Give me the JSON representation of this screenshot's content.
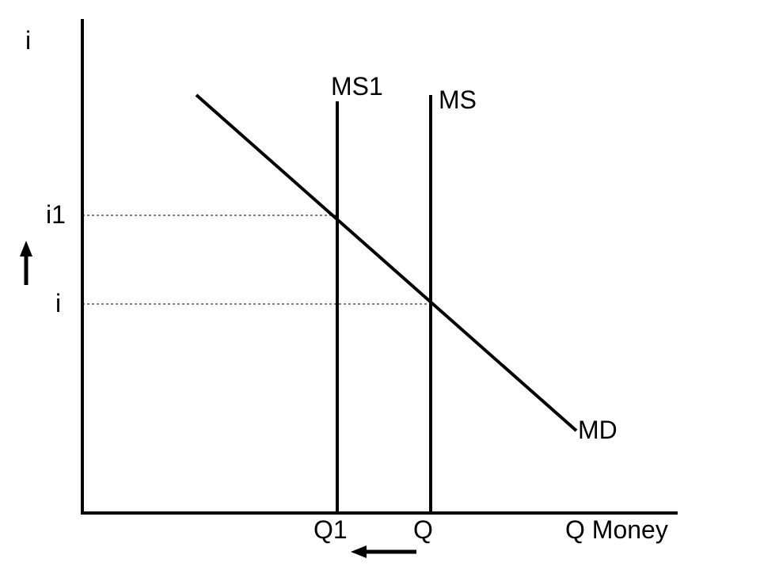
{
  "diagram": {
    "y_axis_label": "i",
    "x_axis_label": "Q Money",
    "curves": {
      "money_demand": "MD",
      "money_supply": "MS",
      "money_supply_new": "MS1"
    },
    "y_ticks": {
      "new_rate": "i1",
      "initial_rate": "i"
    },
    "x_ticks": {
      "new_quantity": "Q1",
      "initial_quantity": "Q"
    },
    "arrows": {
      "rate_change": "up",
      "quantity_change": "left"
    },
    "colors": {
      "ink": "#000000"
    }
  }
}
